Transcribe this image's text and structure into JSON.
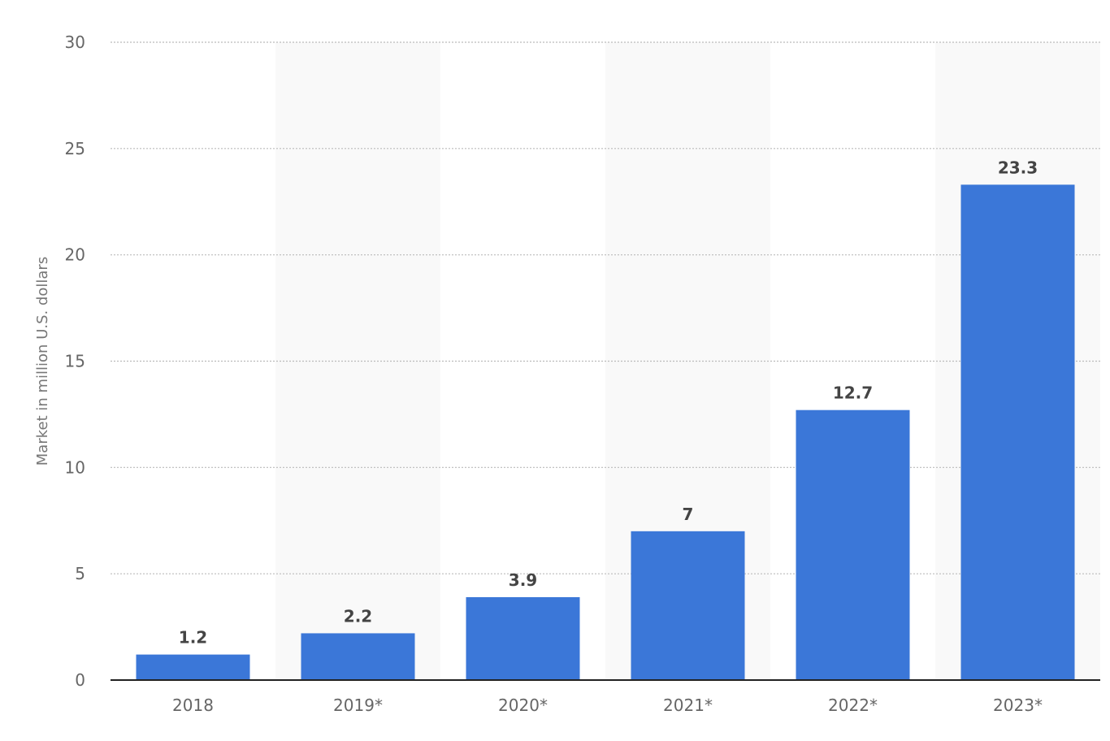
{
  "chart_data": {
    "type": "bar",
    "categories": [
      "2018",
      "2019*",
      "2020*",
      "2021*",
      "2022*",
      "2023*"
    ],
    "values": [
      1.2,
      2.2,
      3.9,
      7,
      12.7,
      23.3
    ],
    "data_labels": [
      "1.2",
      "2.2",
      "3.9",
      "7",
      "12.7",
      "23.3"
    ],
    "title": "",
    "xlabel": "",
    "ylabel": "Market in million U.S. dollars",
    "ylim": [
      0,
      30
    ],
    "yticks": [
      0,
      5,
      10,
      15,
      20,
      25,
      30
    ],
    "grid": true,
    "grid_style": "dotted",
    "bar_color": "#3b77d8",
    "band_color": "#f9f9f9",
    "axis_color": "#222222",
    "grid_color": "#bbbbbb"
  }
}
